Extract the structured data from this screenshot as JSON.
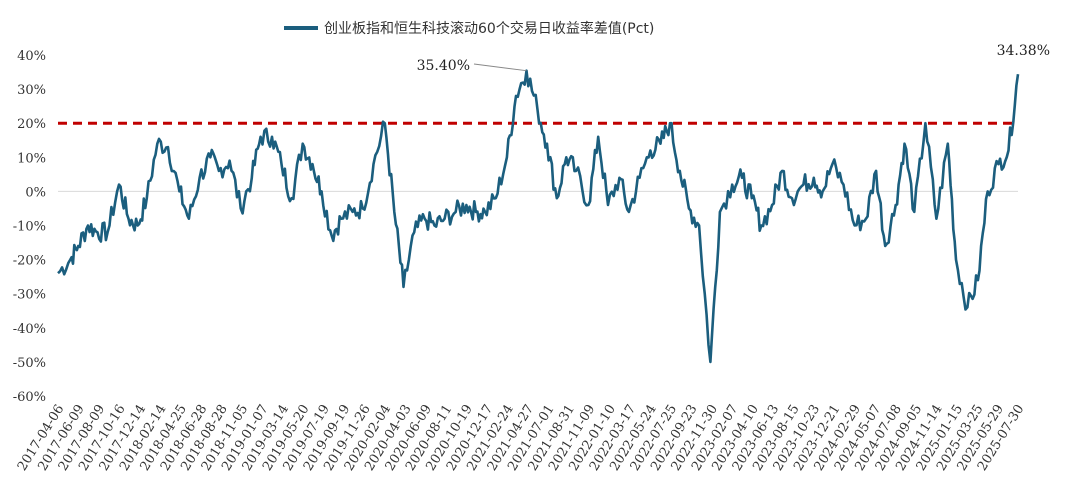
{
  "chart_data": {
    "type": "line",
    "title": "",
    "xlabel": "",
    "ylabel": "",
    "ylim": [
      -60,
      40
    ],
    "yticks": [
      40,
      30,
      20,
      10,
      0,
      -10,
      -20,
      -30,
      -40,
      -50,
      -60
    ],
    "ytick_labels": [
      "40%",
      "30%",
      "20%",
      "10%",
      "0%",
      "-10%",
      "-20%",
      "-30%",
      "-40%",
      "-50%",
      "-60%"
    ],
    "grid": false,
    "legend_position": "top-center",
    "colors": {
      "series": "#1b5e7e",
      "threshold": "#c00000",
      "axis": "#d9d9d9"
    },
    "series": [
      {
        "name": "创业板指和恒生科技滚动60个交易日收益率差值(Pct)",
        "x": [
          "2017-04-06",
          "2017-05-15",
          "2017-06-09",
          "2017-07-10",
          "2017-08-09",
          "2017-09-10",
          "2017-10-16",
          "2017-11-15",
          "2017-12-14",
          "2018-01-12",
          "2018-02-14",
          "2018-03-20",
          "2018-04-25",
          "2018-05-25",
          "2018-06-28",
          "2018-08-01",
          "2018-08-28",
          "2018-10-01",
          "2018-11-05",
          "2018-12-10",
          "2019-01-07",
          "2019-02-12",
          "2019-03-14",
          "2019-04-15",
          "2019-05-20",
          "2019-06-20",
          "2019-07-19",
          "2019-08-20",
          "2019-09-19",
          "2019-10-25",
          "2019-11-26",
          "2019-12-30",
          "2020-02-04",
          "2020-03-05",
          "2020-04-03",
          "2020-05-07",
          "2020-06-09",
          "2020-07-10",
          "2020-08-11",
          "2020-09-15",
          "2020-10-19",
          "2020-11-18",
          "2020-12-17",
          "2021-01-20",
          "2021-02-24",
          "2021-03-25",
          "2021-04-27",
          "2021-06-01",
          "2021-07-01",
          "2021-08-01",
          "2021-08-31",
          "2021-10-01",
          "2021-11-09",
          "2021-12-10",
          "2022-01-10",
          "2022-02-15",
          "2022-03-17",
          "2022-04-20",
          "2022-05-24",
          "2022-06-25",
          "2022-07-25",
          "2022-08-25",
          "2022-09-23",
          "2022-10-25",
          "2022-11-30",
          "2022-12-30",
          "2023-02-07",
          "2023-03-10",
          "2023-04-10",
          "2023-05-10",
          "2023-06-13",
          "2023-07-15",
          "2023-08-15",
          "2023-09-20",
          "2023-10-23",
          "2023-11-20",
          "2023-12-21",
          "2024-01-25",
          "2024-02-29",
          "2024-04-05",
          "2024-05-07",
          "2024-06-05",
          "2024-07-08",
          "2024-08-05",
          "2024-09-05",
          "2024-10-10",
          "2024-11-14",
          "2024-12-20",
          "2025-01-15",
          "2025-02-20",
          "2025-03-25",
          "2025-04-25",
          "2025-05-29",
          "2025-06-30",
          "2025-07-30"
        ],
        "values": [
          -24,
          -20,
          -16,
          -10,
          -12,
          -12,
          2,
          -8,
          -10,
          -2,
          14,
          13,
          0,
          -8,
          4,
          10,
          6,
          9,
          -5,
          4,
          16,
          16,
          8,
          -2,
          14,
          8,
          0,
          -13,
          -8,
          -6,
          -5,
          8,
          20,
          -6,
          -28,
          -12,
          -8,
          -10,
          -8,
          -6,
          -4,
          -6,
          -6,
          -2,
          10,
          28,
          35.4,
          24,
          14,
          -2,
          10,
          6,
          -4,
          16,
          -4,
          4,
          -6,
          4,
          12,
          14,
          20,
          6,
          -5,
          -10,
          -50,
          -6,
          2,
          4,
          -2,
          -10,
          -4,
          6,
          -2,
          2,
          4,
          0,
          8,
          2,
          -10,
          -8,
          6,
          -16,
          -4,
          14,
          -6,
          20,
          -8,
          14,
          -20,
          -34,
          -26,
          0,
          8,
          12,
          34.38
        ]
      }
    ],
    "reference_line": {
      "value": 20,
      "style": "dashed"
    },
    "annotations": [
      {
        "label": "35.40%",
        "x": "2021-04-27",
        "y": 35.4
      },
      {
        "label": "34.38%",
        "x": "2025-07-30",
        "y": 34.38
      }
    ]
  }
}
